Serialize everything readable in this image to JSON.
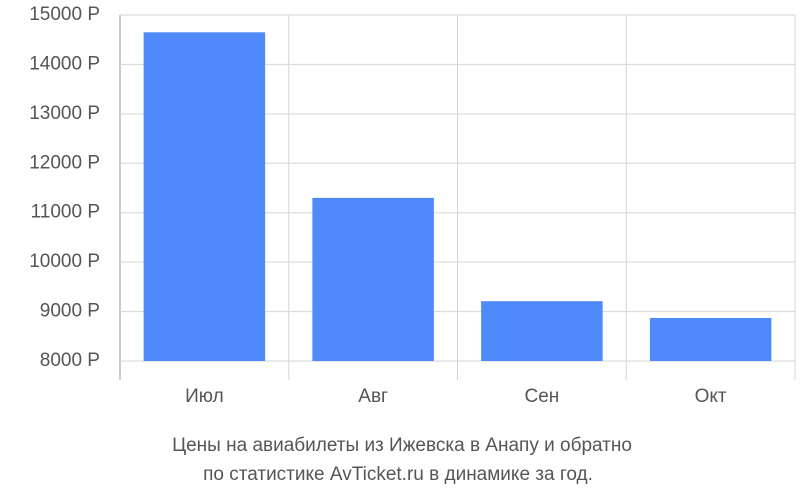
{
  "chart_data": {
    "type": "bar",
    "caption": [
      "Цены на авиабилеты из Ижевска в Анапу и обратно",
      "по статистике AvTicket.ru в динамике за год."
    ],
    "categories": [
      "Июл",
      "Авг",
      "Сен",
      "Окт"
    ],
    "values": [
      14650,
      11300,
      9210,
      8870
    ],
    "color": "#4e8af9",
    "ylim": [
      8000,
      15000
    ],
    "yticks": [
      {
        "value": 8000,
        "label": "8000 Р"
      },
      {
        "value": 9000,
        "label": "9000 Р"
      },
      {
        "value": 10000,
        "label": "10000 Р"
      },
      {
        "value": 11000,
        "label": "11000 Р"
      },
      {
        "value": 12000,
        "label": "12000 Р"
      },
      {
        "value": 13000,
        "label": "13000 Р"
      },
      {
        "value": 14000,
        "label": "14000 Р"
      },
      {
        "value": 15000,
        "label": "15000 Р"
      }
    ],
    "grid": true
  }
}
